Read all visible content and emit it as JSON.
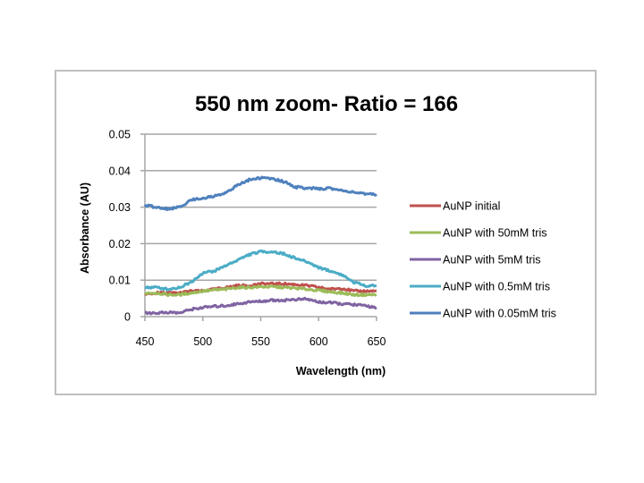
{
  "chart_data": {
    "type": "line",
    "title": "550 nm zoom- Ratio = 166",
    "xlabel": "Wavelength (nm)",
    "ylabel": "Absorbance (AU)",
    "xlim": [
      450,
      650
    ],
    "ylim": [
      0,
      0.05
    ],
    "x_ticks": [
      "450",
      "500",
      "550",
      "600",
      "650"
    ],
    "y_ticks": [
      "0",
      "0.01",
      "0.02",
      "0.03",
      "0.04",
      "0.05"
    ],
    "grid": "horizontal major gridlines",
    "legend_position": "right",
    "x": [
      450,
      460,
      470,
      480,
      490,
      500,
      510,
      520,
      530,
      540,
      550,
      560,
      570,
      580,
      590,
      600,
      610,
      620,
      630,
      640,
      650
    ],
    "series": [
      {
        "name": "AuNP initial",
        "color": "#C0504D",
        "values": [
          0.006,
          0.0065,
          0.0065,
          0.0065,
          0.007,
          0.007,
          0.0075,
          0.008,
          0.0085,
          0.0085,
          0.009,
          0.009,
          0.009,
          0.0088,
          0.0085,
          0.008,
          0.0075,
          0.0078,
          0.007,
          0.007,
          0.007
        ]
      },
      {
        "name": "AuNP with 50mM tris",
        "color": "#9BBB59",
        "values": [
          0.0065,
          0.0065,
          0.006,
          0.006,
          0.0065,
          0.007,
          0.0073,
          0.0075,
          0.008,
          0.008,
          0.0082,
          0.0082,
          0.008,
          0.0078,
          0.0075,
          0.0072,
          0.0068,
          0.0065,
          0.006,
          0.006,
          0.006
        ]
      },
      {
        "name": "AuNP with 5mM tris",
        "color": "#8064A2",
        "values": [
          0.001,
          0.001,
          0.0012,
          0.001,
          0.002,
          0.0025,
          0.0028,
          0.003,
          0.0035,
          0.004,
          0.0042,
          0.0045,
          0.0045,
          0.0047,
          0.0048,
          0.004,
          0.0038,
          0.0035,
          0.0033,
          0.003,
          0.0025
        ]
      },
      {
        "name": "AuNP with 0.5mM tris",
        "color": "#4BACC6",
        "values": [
          0.008,
          0.008,
          0.0075,
          0.008,
          0.0095,
          0.012,
          0.0125,
          0.014,
          0.0155,
          0.017,
          0.0178,
          0.0178,
          0.0172,
          0.016,
          0.015,
          0.0135,
          0.0125,
          0.0115,
          0.0095,
          0.0085,
          0.0085
        ]
      },
      {
        "name": "AuNP with 0.05mM tris",
        "color": "#4F81BD",
        "values": [
          0.0305,
          0.03,
          0.0295,
          0.03,
          0.032,
          0.0325,
          0.033,
          0.034,
          0.036,
          0.0375,
          0.038,
          0.0378,
          0.037,
          0.0355,
          0.0352,
          0.035,
          0.0352,
          0.0345,
          0.0342,
          0.0335,
          0.0335
        ]
      }
    ]
  },
  "colors": {
    "frame_border": "#bfbfbf",
    "gridline": "#a6a6a6",
    "axis": "#a6a6a6"
  }
}
